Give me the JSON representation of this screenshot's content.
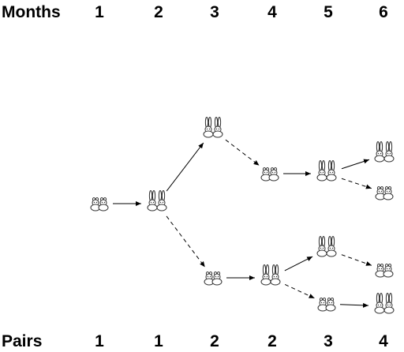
{
  "headers": {
    "months_label": "Months",
    "pairs_label": "Pairs"
  },
  "months": [
    "1",
    "2",
    "3",
    "4",
    "5",
    "6"
  ],
  "pairs": [
    "1",
    "1",
    "2",
    "2",
    "3",
    "4"
  ],
  "diagram": {
    "nodes": [
      {
        "id": "m1",
        "month": 1,
        "kind": "young"
      },
      {
        "id": "m2",
        "month": 2,
        "kind": "adult"
      },
      {
        "id": "m3a",
        "month": 3,
        "kind": "adult"
      },
      {
        "id": "m3b",
        "month": 3,
        "kind": "young"
      },
      {
        "id": "m4a",
        "month": 4,
        "kind": "young"
      },
      {
        "id": "m4b",
        "month": 4,
        "kind": "adult"
      },
      {
        "id": "m5a",
        "month": 5,
        "kind": "adult"
      },
      {
        "id": "m5b",
        "month": 5,
        "kind": "adult"
      },
      {
        "id": "m5c",
        "month": 5,
        "kind": "young"
      },
      {
        "id": "m6a",
        "month": 6,
        "kind": "adult"
      },
      {
        "id": "m6b",
        "month": 6,
        "kind": "young"
      },
      {
        "id": "m6c",
        "month": 6,
        "kind": "young"
      },
      {
        "id": "m6d",
        "month": 6,
        "kind": "adult"
      }
    ],
    "edges": [
      {
        "from": "m1",
        "to": "m2",
        "style": "solid"
      },
      {
        "from": "m2",
        "to": "m3a",
        "style": "solid"
      },
      {
        "from": "m2",
        "to": "m3b",
        "style": "dashed"
      },
      {
        "from": "m3a",
        "to": "m4a",
        "style": "dashed"
      },
      {
        "from": "m3b",
        "to": "m4b",
        "style": "solid"
      },
      {
        "from": "m4a",
        "to": "m5a",
        "style": "solid"
      },
      {
        "from": "m4b",
        "to": "m5b",
        "style": "solid"
      },
      {
        "from": "m4b",
        "to": "m5c",
        "style": "dashed"
      },
      {
        "from": "m5a",
        "to": "m6a",
        "style": "solid"
      },
      {
        "from": "m5a",
        "to": "m6b",
        "style": "dashed"
      },
      {
        "from": "m5b",
        "to": "m6c",
        "style": "dashed"
      },
      {
        "from": "m5c",
        "to": "m6d",
        "style": "solid"
      }
    ]
  }
}
